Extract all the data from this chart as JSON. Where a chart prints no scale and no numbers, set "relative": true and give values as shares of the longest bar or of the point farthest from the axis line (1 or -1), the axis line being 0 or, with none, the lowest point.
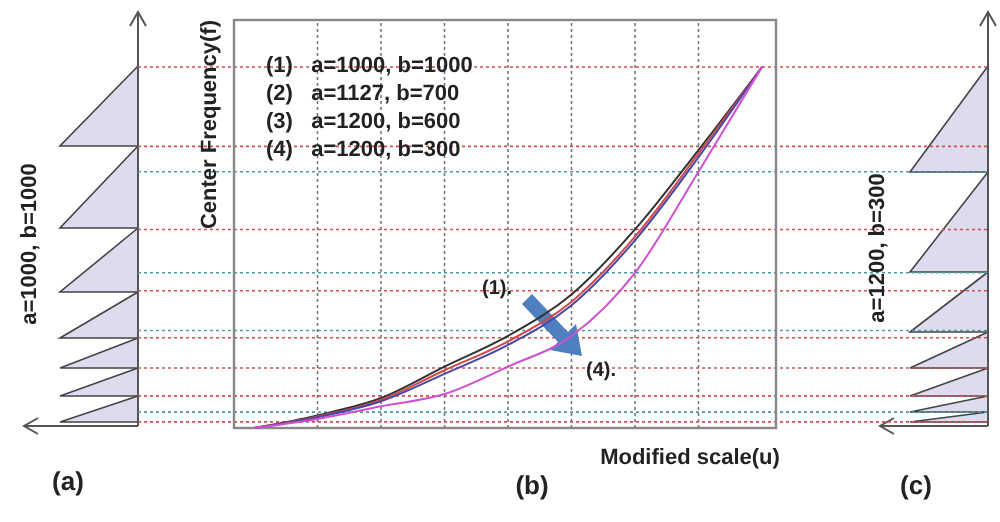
{
  "chart_data": {
    "type": "line",
    "relative": true,
    "xlabel": "Modified scale(u)",
    "ylabel": "Center Frequency(f)",
    "categories": [
      null,
      null,
      null,
      null,
      null,
      null,
      null,
      null,
      null
    ],
    "series": [
      {
        "color": "#333333",
        "values": [
          0,
          0.035,
          0.083,
          0.17,
          0.255,
          0.37,
          0.55,
          0.77,
          1
        ]
      },
      {
        "color": "#d04848",
        "values": [
          0,
          0.032,
          0.078,
          0.16,
          0.24,
          0.35,
          0.53,
          0.76,
          1
        ]
      },
      {
        "color": "#4848a8",
        "values": [
          0,
          0.03,
          0.074,
          0.15,
          0.23,
          0.34,
          0.52,
          0.75,
          1
        ]
      },
      {
        "color": "#d050d0",
        "values": [
          0,
          0.025,
          0.06,
          0.094,
          0.17,
          0.255,
          0.43,
          0.71,
          1
        ]
      }
    ],
    "grid": "x",
    "line_style": "solid",
    "marker": "none",
    "ref_lines": [
      {
        "axis": "y",
        "value": 1,
        "color": "#d05050",
        "line_style": "dotted"
      },
      {
        "axis": "y",
        "value": 0.78,
        "color": "#d05050",
        "line_style": "dotted"
      },
      {
        "axis": "y",
        "value": 0.55,
        "color": "#d05050",
        "line_style": "dotted"
      },
      {
        "axis": "y",
        "value": 0.38,
        "color": "#d05050",
        "line_style": "dotted"
      },
      {
        "axis": "y",
        "value": 0.25,
        "color": "#d05050",
        "line_style": "dotted"
      },
      {
        "axis": "y",
        "value": 0.166,
        "color": "#d05050",
        "line_style": "dotted"
      },
      {
        "axis": "y",
        "value": 0.089,
        "color": "#d05050",
        "line_style": "dotted"
      },
      {
        "axis": "y",
        "value": 0.017,
        "color": "#d05050",
        "line_style": "dotted"
      },
      {
        "axis": "y",
        "value": 0.71,
        "color": "#4a9aa8",
        "line_style": "dotted"
      },
      {
        "axis": "y",
        "value": 0.43,
        "color": "#4a9aa8",
        "line_style": "dotted"
      },
      {
        "axis": "y",
        "value": 0.27,
        "color": "#4a9aa8",
        "line_style": "dotted"
      },
      {
        "axis": "y",
        "value": 0.044,
        "color": "#4a9aa8",
        "line_style": "dotted"
      }
    ],
    "annotations": [
      "(1)   a=1000, b=1000",
      "(2)   a=1127, b=700",
      "(3)   a=1200, b=600",
      "(4)   a=1200, b=300",
      "(1).",
      "(4).",
      "a=1000, b=1000",
      "a=1200, b=300",
      "(a)",
      "(b)",
      "(c)"
    ]
  }
}
